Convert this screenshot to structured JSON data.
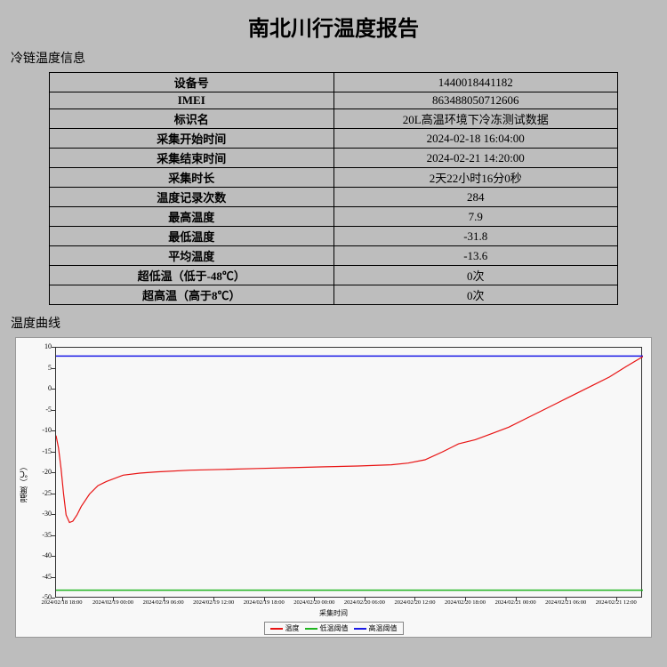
{
  "title": "南北川行温度报告",
  "section_info_label": "冷链温度信息",
  "section_chart_label": "温度曲线",
  "info_rows": [
    {
      "key": "设备号",
      "val": "1440018441182"
    },
    {
      "key": "IMEI",
      "val": "863488050712606"
    },
    {
      "key": "标识名",
      "val": "20L高温环境下冷冻测试数据"
    },
    {
      "key": "采集开始时间",
      "val": "2024-02-18 16:04:00"
    },
    {
      "key": "采集结束时间",
      "val": "2024-02-21 14:20:00"
    },
    {
      "key": "采集时长",
      "val": "2天22小时16分0秒"
    },
    {
      "key": "温度记录次数",
      "val": "284"
    },
    {
      "key": "最高温度",
      "val": "7.9"
    },
    {
      "key": "最低温度",
      "val": "-31.8"
    },
    {
      "key": "平均温度",
      "val": "-13.6"
    },
    {
      "key": "超低温（低于-48℃）",
      "val": "0次"
    },
    {
      "key": "超高温（高于8℃）",
      "val": "0次"
    }
  ],
  "chart": {
    "type": "line",
    "background_color": "#f8f8f8",
    "plot_border_color": "#333333",
    "grid_on": false,
    "ylabel": "温度（℃）",
    "xlabel": "采集时间",
    "ylim": [
      -50,
      10
    ],
    "ytick_step": 5,
    "yticks": [
      10,
      5,
      0,
      -5,
      -10,
      -15,
      -20,
      -25,
      -30,
      -35,
      -40,
      -45,
      -50
    ],
    "xlim": [
      0,
      70
    ],
    "xticks_pos": [
      0.8,
      6.9,
      12.9,
      18.9,
      24.9,
      30.9,
      36.9,
      42.9,
      48.9,
      54.9,
      60.9,
      66.9
    ],
    "xticks_label": [
      "2024/02/18 18:00",
      "2024/02/19 00:00",
      "2024/02/19 06:00",
      "2024/02/19 12:00",
      "2024/02/19 18:00",
      "2024/02/20 00:00",
      "2024/02/20 06:00",
      "2024/02/20 12:00",
      "2024/02/20 18:00",
      "2024/02/21 00:00",
      "2024/02/21 06:00",
      "2024/02/21 12:00"
    ],
    "line_high": {
      "label": "高温阈值",
      "color": "#1a1ae6",
      "width": 1.5,
      "y": 8
    },
    "line_low": {
      "label": "低温阈值",
      "color": "#1fb41f",
      "width": 1.5,
      "y": -48
    },
    "series_temp": {
      "label": "温度",
      "color": "#e81313",
      "width": 1.2,
      "x": [
        0,
        0.3,
        0.6,
        0.9,
        1.2,
        1.6,
        2.0,
        2.5,
        3,
        4,
        5,
        6,
        8,
        10,
        12,
        16,
        20,
        24,
        28,
        32,
        36,
        40,
        42,
        44,
        46,
        48,
        50,
        52,
        54,
        56,
        58,
        60,
        62,
        64,
        66,
        68,
        70
      ],
      "y": [
        -11,
        -14,
        -19,
        -25,
        -30,
        -31.8,
        -31.5,
        -30,
        -28,
        -25,
        -23,
        -22,
        -20.5,
        -20,
        -19.7,
        -19.3,
        -19.1,
        -18.9,
        -18.7,
        -18.5,
        -18.3,
        -18,
        -17.6,
        -16.8,
        -15,
        -13,
        -12,
        -10.5,
        -9,
        -7,
        -5,
        -3,
        -1,
        1,
        3,
        5.5,
        7.9
      ]
    },
    "label_fontsize": 9,
    "tick_fontsize": 8
  },
  "legend_items": [
    {
      "label": "温度",
      "color": "#e81313"
    },
    {
      "label": "低温阈值",
      "color": "#1fb41f"
    },
    {
      "label": "高温阈值",
      "color": "#1a1ae6"
    }
  ]
}
